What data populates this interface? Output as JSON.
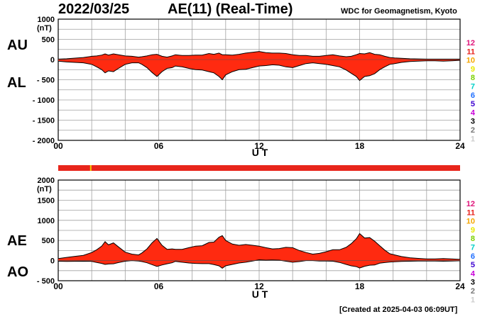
{
  "header": {
    "date": "2022/03/25",
    "title": "AE(11) (Real-Time)",
    "organization": "WDC for Geomagnetism, Kyoto"
  },
  "footer": {
    "created": "[Created at 2025-04-03 06:09UT]"
  },
  "legend_numbers": [
    {
      "label": "12",
      "color": "#e0157a"
    },
    {
      "label": "11",
      "color": "#e8201a"
    },
    {
      "label": "10",
      "color": "#f5a600"
    },
    {
      "label": "9",
      "color": "#e8e800"
    },
    {
      "label": "8",
      "color": "#7ad000"
    },
    {
      "label": "7",
      "color": "#00d0c8"
    },
    {
      "label": "6",
      "color": "#1e6eff"
    },
    {
      "label": "5",
      "color": "#3c00d0"
    },
    {
      "label": "4",
      "color": "#c800d8"
    },
    {
      "label": "3",
      "color": "#000000"
    },
    {
      "label": "2",
      "color": "#777777"
    },
    {
      "label": "1",
      "color": "#cccccc"
    }
  ],
  "status_bar": {
    "color": "#e8251b",
    "marker_hour": 1.9,
    "marker_color": "#f5c800"
  },
  "colors": {
    "fill": "#ff2a10",
    "grid": "#a0a0a0",
    "outline": "#000000"
  },
  "chart_data": [
    {
      "type": "area",
      "panel": "upper",
      "series_labels": [
        "AU",
        "AL"
      ],
      "unit": "(nT)",
      "xlabel": "U T",
      "xlim": [
        0,
        24
      ],
      "ylim": [
        -2000,
        1000
      ],
      "x_ticks": [
        "00",
        "06",
        "12",
        "18",
        "24"
      ],
      "y_ticks": [
        "1000",
        "500",
        "0",
        "- 500",
        "- 1000",
        "- 1500",
        "- 2000"
      ],
      "x": [
        0,
        0.5,
        1,
        1.5,
        2,
        2.3,
        2.6,
        2.8,
        3,
        3.3,
        3.6,
        4,
        4.4,
        4.8,
        5,
        5.3,
        5.6,
        5.9,
        6.2,
        6.5,
        6.8,
        7,
        7.4,
        7.8,
        8.2,
        8.6,
        9,
        9.3,
        9.6,
        9.8,
        10,
        10.4,
        10.8,
        11.2,
        11.6,
        12,
        12.4,
        12.8,
        13.2,
        13.6,
        14,
        14.4,
        14.8,
        15.2,
        15.6,
        16,
        16.4,
        16.8,
        17.2,
        17.5,
        17.8,
        18,
        18.3,
        18.6,
        18.9,
        19.2,
        19.5,
        19.8,
        20.1,
        20.5,
        21,
        21.5,
        22,
        22.5,
        23,
        23.5,
        24
      ],
      "au": [
        10,
        20,
        35,
        50,
        80,
        90,
        110,
        140,
        110,
        140,
        120,
        90,
        80,
        60,
        70,
        90,
        120,
        130,
        80,
        60,
        90,
        120,
        100,
        100,
        110,
        110,
        150,
        130,
        160,
        120,
        120,
        110,
        130,
        160,
        180,
        200,
        170,
        160,
        160,
        150,
        120,
        100,
        100,
        80,
        80,
        100,
        120,
        90,
        70,
        80,
        120,
        150,
        140,
        170,
        130,
        120,
        80,
        50,
        40,
        30,
        20,
        15,
        10,
        10,
        10,
        10,
        10
      ],
      "al": [
        -40,
        -60,
        -70,
        -80,
        -120,
        -180,
        -250,
        -330,
        -280,
        -300,
        -220,
        -120,
        -80,
        -80,
        -120,
        -200,
        -320,
        -420,
        -300,
        -220,
        -200,
        -160,
        -180,
        -220,
        -250,
        -260,
        -300,
        -330,
        -420,
        -500,
        -380,
        -300,
        -250,
        -240,
        -200,
        -160,
        -150,
        -130,
        -140,
        -180,
        -200,
        -150,
        -100,
        -80,
        -100,
        -120,
        -150,
        -180,
        -260,
        -340,
        -420,
        -520,
        -420,
        -400,
        -350,
        -250,
        -180,
        -120,
        -100,
        -70,
        -50,
        -40,
        -30,
        -30,
        -40,
        -30,
        -20
      ]
    },
    {
      "type": "area",
      "panel": "lower",
      "series_labels": [
        "AE",
        "AO"
      ],
      "unit": "(nT)",
      "xlabel": "U T",
      "xlim": [
        0,
        24
      ],
      "ylim": [
        -500,
        2000
      ],
      "x_ticks": [
        "00",
        "06",
        "12",
        "18",
        "24"
      ],
      "y_ticks": [
        "2000",
        "1500",
        "1000",
        "500",
        "0",
        "- 500"
      ],
      "x": [
        0,
        0.5,
        1,
        1.5,
        2,
        2.3,
        2.6,
        2.8,
        3,
        3.3,
        3.6,
        4,
        4.4,
        4.8,
        5,
        5.3,
        5.6,
        5.9,
        6.2,
        6.5,
        6.8,
        7,
        7.4,
        7.8,
        8.2,
        8.6,
        9,
        9.3,
        9.6,
        9.8,
        10,
        10.4,
        10.8,
        11.2,
        11.6,
        12,
        12.4,
        12.8,
        13.2,
        13.6,
        14,
        14.4,
        14.8,
        15.2,
        15.6,
        16,
        16.4,
        16.8,
        17.2,
        17.5,
        17.8,
        18,
        18.3,
        18.6,
        18.9,
        19.2,
        19.5,
        19.8,
        20.1,
        20.5,
        21,
        21.5,
        22,
        22.5,
        23,
        23.5,
        24
      ],
      "ae": [
        50,
        80,
        105,
        130,
        200,
        270,
        360,
        470,
        390,
        440,
        340,
        210,
        160,
        140,
        190,
        290,
        440,
        550,
        380,
        280,
        290,
        280,
        280,
        320,
        360,
        370,
        450,
        460,
        580,
        620,
        500,
        410,
        380,
        400,
        380,
        360,
        320,
        290,
        300,
        330,
        320,
        250,
        200,
        160,
        180,
        220,
        270,
        270,
        330,
        420,
        540,
        670,
        560,
        570,
        480,
        370,
        260,
        170,
        140,
        100,
        70,
        55,
        40,
        40,
        50,
        40,
        30
      ],
      "ao": [
        -15,
        -20,
        -18,
        -15,
        -20,
        -45,
        -70,
        -95,
        -85,
        -80,
        -50,
        -15,
        0,
        -10,
        -25,
        -55,
        -100,
        -145,
        -110,
        -80,
        -55,
        -20,
        -40,
        -60,
        -70,
        -75,
        -75,
        -100,
        -130,
        -190,
        -130,
        -95,
        -60,
        -40,
        -10,
        20,
        10,
        15,
        10,
        -15,
        -40,
        -25,
        0,
        0,
        -10,
        -10,
        -15,
        -45,
        -95,
        -130,
        -150,
        -185,
        -140,
        -115,
        -110,
        -65,
        -50,
        -35,
        -30,
        -20,
        -15,
        -12,
        -10,
        -10,
        -15,
        -10,
        -5
      ]
    }
  ]
}
